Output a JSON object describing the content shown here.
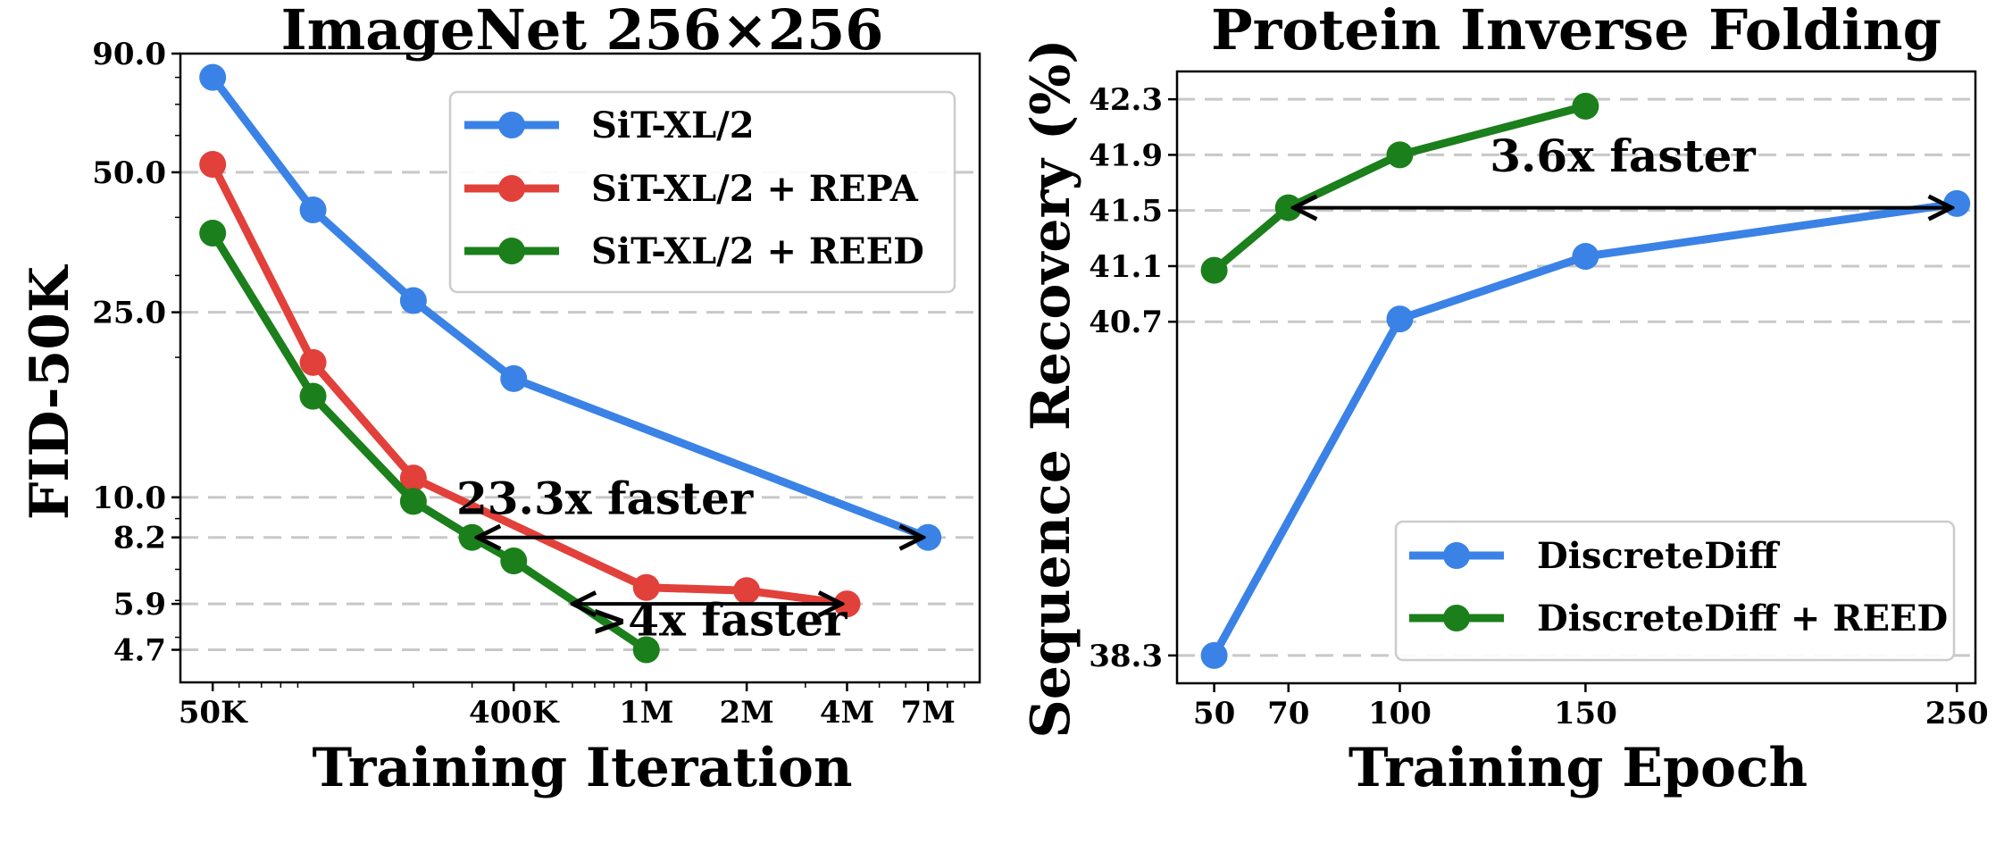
{
  "chart_data": [
    {
      "type": "line",
      "title": "ImageNet 256×256",
      "xlabel": "Training Iteration",
      "ylabel": "FID-50K",
      "xscale": "log",
      "yscale": "log",
      "xlim": [
        40000,
        10000000
      ],
      "ylim": [
        4.0,
        90.0
      ],
      "xticks": [
        {
          "value": 50000,
          "label": "50K"
        },
        {
          "value": 400000,
          "label": "400K"
        },
        {
          "value": 1000000,
          "label": "1M"
        },
        {
          "value": 2000000,
          "label": "2M"
        },
        {
          "value": 4000000,
          "label": "4M"
        },
        {
          "value": 7000000,
          "label": "7M"
        }
      ],
      "yticks": [
        {
          "value": 90.0,
          "label": "90.0",
          "grid": false
        },
        {
          "value": 50.0,
          "label": "50.0",
          "grid": true
        },
        {
          "value": 25.0,
          "label": "25.0",
          "grid": true
        },
        {
          "value": 10.0,
          "label": "10.0",
          "grid": true
        },
        {
          "value": 8.2,
          "label": "8.2",
          "grid": true
        },
        {
          "value": 5.9,
          "label": "5.9",
          "grid": true
        },
        {
          "value": 4.7,
          "label": "4.7",
          "grid": true
        }
      ],
      "legend_position": "top-right",
      "series": [
        {
          "name": "SiT-XL/2",
          "color": "#3a82e6",
          "x": [
            50000,
            100000,
            200000,
            400000,
            7000000
          ],
          "y": [
            80.0,
            41.5,
            26.5,
            18.0,
            8.2
          ]
        },
        {
          "name": "SiT-XL/2 + REPA",
          "color": "#e2403a",
          "x": [
            50000,
            100000,
            200000,
            1000000,
            2000000,
            4000000
          ],
          "y": [
            52.0,
            19.5,
            11.0,
            6.4,
            6.3,
            5.9
          ]
        },
        {
          "name": "SiT-XL/2 + REED",
          "color": "#1b7f1b",
          "x": [
            50000,
            100000,
            200000,
            300000,
            400000,
            1000000
          ],
          "y": [
            37.0,
            16.5,
            9.8,
            8.2,
            7.3,
            4.7
          ]
        }
      ],
      "annotations": [
        {
          "text": "23.3x faster",
          "from": [
            300000,
            8.2
          ],
          "to": [
            7000000,
            8.2
          ],
          "label_at": [
            750000,
            9.2
          ]
        },
        {
          "text": ">4x faster",
          "from": [
            580000,
            5.9
          ],
          "to": [
            4000000,
            5.9
          ],
          "label_at": [
            1650000,
            5.05
          ]
        }
      ]
    },
    {
      "type": "line",
      "title": "Protein Inverse Folding",
      "xlabel": "Training Epoch",
      "ylabel": "Sequence Recovery (%)",
      "xlim": [
        40,
        255
      ],
      "ylim": [
        38.1,
        42.5
      ],
      "xticks": [
        {
          "value": 50,
          "label": "50"
        },
        {
          "value": 70,
          "label": "70"
        },
        {
          "value": 100,
          "label": "100"
        },
        {
          "value": 150,
          "label": "150"
        },
        {
          "value": 250,
          "label": "250"
        }
      ],
      "yticks": [
        {
          "value": 42.3,
          "label": "42.3"
        },
        {
          "value": 41.9,
          "label": "41.9"
        },
        {
          "value": 41.5,
          "label": "41.5"
        },
        {
          "value": 41.1,
          "label": "41.1"
        },
        {
          "value": 40.7,
          "label": "40.7"
        },
        {
          "value": 38.3,
          "label": "38.3"
        }
      ],
      "legend_position": "bottom-right",
      "series": [
        {
          "name": "DiscreteDiff",
          "color": "#3a82e6",
          "x": [
            50,
            100,
            150,
            250
          ],
          "y": [
            38.3,
            40.72,
            41.17,
            41.55
          ]
        },
        {
          "name": "DiscreteDiff + REED",
          "color": "#1b7f1b",
          "x": [
            50,
            70,
            100,
            150
          ],
          "y": [
            41.07,
            41.52,
            41.9,
            42.25
          ]
        }
      ],
      "annotations": [
        {
          "text": "3.6x faster",
          "from": [
            70,
            41.52
          ],
          "to": [
            250,
            41.52
          ],
          "label_at": [
            160,
            41.78
          ]
        }
      ]
    }
  ]
}
